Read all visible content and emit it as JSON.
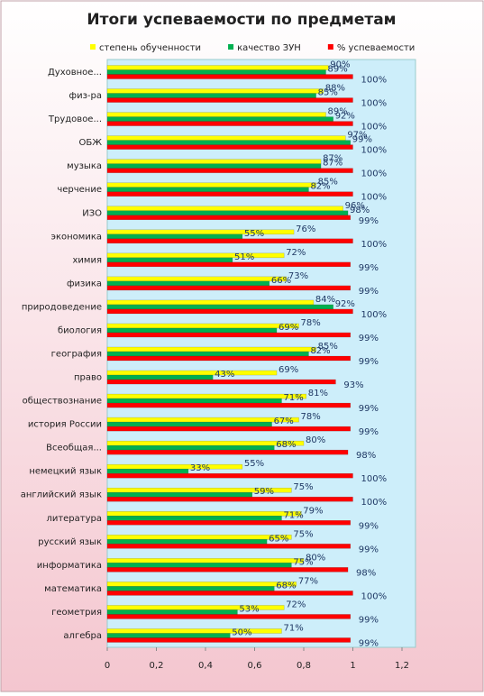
{
  "chart_data": {
    "type": "bar",
    "orientation": "horizontal",
    "title": "Итоги успеваемости по предметам",
    "categories": [
      "Духовное...",
      "физ-ра",
      "Трудовое...",
      "ОБЖ",
      "музыка",
      "черчение",
      "ИЗО",
      "экономика",
      "химия",
      "физика",
      "природоведение",
      "биология",
      "география",
      "право",
      "обществознание",
      "история России",
      "Всеобщая...",
      "немецкий язык",
      "английский язык",
      "литература",
      "русский язык",
      "информатика",
      "математика",
      "геометрия",
      "алгебра"
    ],
    "series": [
      {
        "name": "степень обученности",
        "color": "#ffff00",
        "values": [
          0.9,
          0.88,
          0.89,
          0.97,
          0.87,
          0.85,
          0.96,
          0.76,
          0.72,
          0.73,
          0.84,
          0.78,
          0.85,
          0.69,
          0.81,
          0.78,
          0.8,
          0.55,
          0.75,
          0.79,
          0.75,
          0.8,
          0.77,
          0.72,
          0.71
        ],
        "value_labels": [
          "90%",
          "88%",
          "89%",
          "97%",
          "87%",
          "85%",
          "96%",
          "76%",
          "72%",
          "73%",
          "84%",
          "78%",
          "85%",
          "69%",
          "81%",
          "78%",
          "80%",
          "55%",
          "75%",
          "79%",
          "75%",
          "80%",
          "77%",
          "72%",
          "71%"
        ]
      },
      {
        "name": "качество ЗУН",
        "color": "#00b050",
        "values": [
          0.89,
          0.85,
          0.92,
          0.99,
          0.87,
          0.82,
          0.98,
          0.55,
          0.51,
          0.66,
          0.92,
          0.69,
          0.82,
          0.43,
          0.71,
          0.67,
          0.68,
          0.33,
          0.59,
          0.71,
          0.65,
          0.75,
          0.68,
          0.53,
          0.5
        ],
        "value_labels": [
          "89%",
          "85%",
          "92%",
          "99%",
          "87%",
          "82%",
          "98%",
          "55%",
          "51%",
          "66%",
          "92%",
          "69%",
          "82%",
          "43%",
          "71%",
          "67%",
          "68%",
          "33%",
          "59%",
          "71%",
          "65%",
          "75%",
          "68%",
          "53%",
          "50%"
        ]
      },
      {
        "name": "% успеваемости",
        "color": "#ff0000",
        "values": [
          1,
          1,
          1,
          1,
          1,
          1,
          0.99,
          1,
          0.99,
          0.99,
          1,
          0.99,
          0.99,
          0.93,
          0.99,
          0.99,
          0.98,
          1,
          1,
          0.99,
          0.99,
          0.98,
          1,
          0.99,
          0.99
        ],
        "value_labels": [
          "100%",
          "100%",
          "100%",
          "100%",
          "100%",
          "100%",
          "99%",
          "100%",
          "99%",
          "99%",
          "100%",
          "99%",
          "99%",
          "93%",
          "99%",
          "99%",
          "98%",
          "100%",
          "100%",
          "99%",
          "99%",
          "98%",
          "100%",
          "99%",
          "99%"
        ]
      }
    ],
    "xlim": [
      0,
      1.2
    ],
    "xticks": [
      0,
      {
        "value": 0.2,
        "label": "0,2"
      },
      {
        "value": 0.4,
        "label": "0,4"
      },
      {
        "value": 0.6,
        "label": "0,6"
      },
      {
        "value": 0.8,
        "label": "0,8"
      },
      1,
      {
        "value": 1.2,
        "label": "1,2"
      }
    ],
    "legend": "top"
  }
}
